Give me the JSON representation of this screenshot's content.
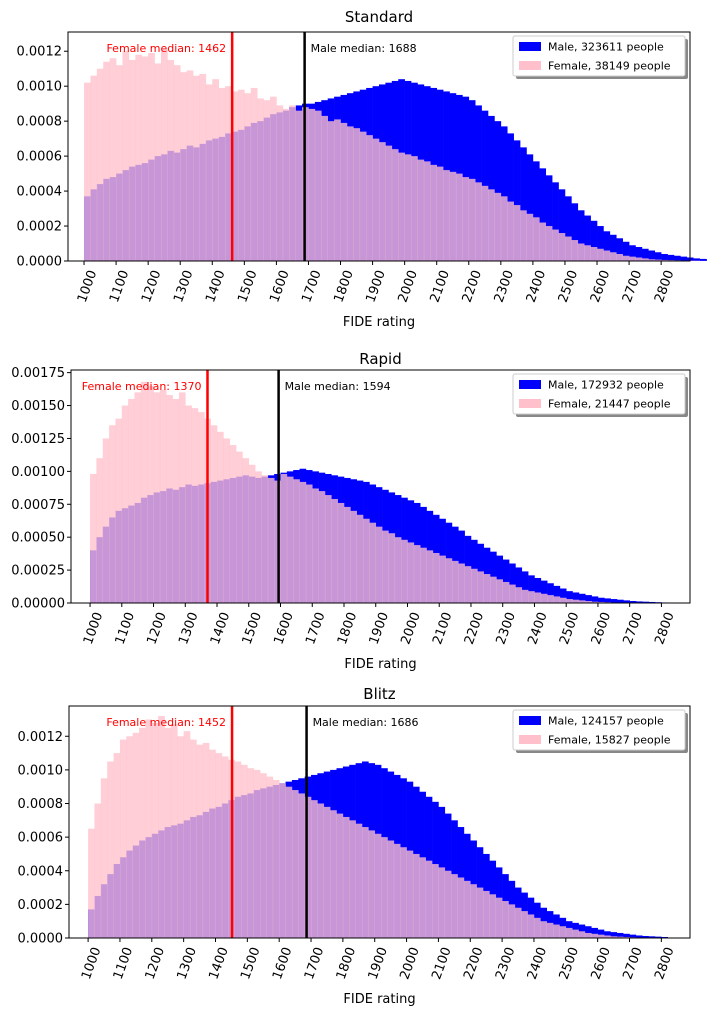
{
  "colors": {
    "male": "#0000ff",
    "female": "#ffc0cb",
    "overlap": "#c89bd6",
    "female_median": "#ff0000",
    "male_median": "#000000"
  },
  "chart_data": [
    {
      "type": "histogram",
      "title": "Standard",
      "xlabel": "FIDE rating",
      "ylabel": "",
      "xlim": [
        950,
        2890
      ],
      "ylim": [
        0,
        0.00131
      ],
      "bin_width": 20,
      "x_ticks": [
        "1000",
        "1100",
        "1200",
        "1300",
        "1400",
        "1500",
        "1600",
        "1700",
        "1800",
        "1900",
        "2000",
        "2100",
        "2200",
        "2300",
        "2400",
        "2500",
        "2600",
        "2700",
        "2800"
      ],
      "y_ticks": [
        "0.0000",
        "0.0002",
        "0.0004",
        "0.0006",
        "0.0008",
        "0.0010",
        "0.0012"
      ],
      "y_tick_values": [
        0,
        0.0002,
        0.0004,
        0.0006,
        0.0008,
        0.001,
        0.0012
      ],
      "legend_position": "top-right",
      "legend_labels": [
        "Male, 323611 people",
        "Female, 38149 people"
      ],
      "median_labels": {
        "female": "Female median: 1462",
        "male": "Male median: 1688"
      },
      "medians": {
        "female": 1462,
        "male": 1688
      },
      "series": [
        {
          "name": "Male, 323611 people",
          "x_start": 1000,
          "values": [
            0.00037,
            0.00041,
            0.00044,
            0.00047,
            0.00048,
            0.0005,
            0.00052,
            0.00054,
            0.00055,
            0.00056,
            0.00058,
            0.0006,
            0.00061,
            0.00063,
            0.00062,
            0.00064,
            0.00066,
            0.00065,
            0.00067,
            0.00069,
            0.0007,
            0.00071,
            0.00073,
            0.00074,
            0.00075,
            0.00077,
            0.00079,
            0.0008,
            0.00082,
            0.00084,
            0.00085,
            0.00086,
            0.00088,
            0.00089,
            0.0009,
            0.0009,
            0.00091,
            0.00092,
            0.00093,
            0.00094,
            0.00095,
            0.00096,
            0.00097,
            0.00098,
            0.00099,
            0.001,
            0.00101,
            0.00102,
            0.00103,
            0.00104,
            0.00103,
            0.00102,
            0.00101,
            0.001,
            0.00099,
            0.00098,
            0.00097,
            0.00096,
            0.00095,
            0.00094,
            0.00092,
            0.00089,
            0.00086,
            0.00083,
            0.0008,
            0.00077,
            0.00073,
            0.00069,
            0.00065,
            0.00061,
            0.00057,
            0.00053,
            0.00049,
            0.00045,
            0.00041,
            0.00037,
            0.00033,
            0.00029,
            0.00026,
            0.00023,
            0.0002,
            0.00017,
            0.00015,
            0.00013,
            0.00011,
            9e-05,
            8e-05,
            7e-05,
            6e-05,
            5e-05,
            4e-05,
            3.5e-05,
            3e-05,
            2.5e-05,
            2e-05,
            1.5e-05,
            1.2e-05,
            1e-05,
            8e-06,
            6e-06,
            5e-06
          ]
        },
        {
          "name": "Female, 38149 people",
          "x_start": 1000,
          "values": [
            0.00102,
            0.00106,
            0.0011,
            0.00114,
            0.00116,
            0.00112,
            0.0012,
            0.00115,
            0.00118,
            0.00117,
            0.00119,
            0.00113,
            0.00121,
            0.00115,
            0.00112,
            0.00108,
            0.00109,
            0.00106,
            0.00107,
            0.00101,
            0.00104,
            0.00099,
            0.001,
            0.00097,
            0.00098,
            0.00096,
            0.00099,
            0.00093,
            0.00092,
            0.00094,
            0.00089,
            0.00087,
            0.00089,
            0.00086,
            0.00088,
            0.00087,
            0.00086,
            0.00083,
            0.0008,
            0.00081,
            0.00079,
            0.00077,
            0.00076,
            0.00074,
            0.00072,
            0.0007,
            0.00068,
            0.00066,
            0.00064,
            0.00062,
            0.00061,
            0.0006,
            0.00058,
            0.00057,
            0.00055,
            0.00054,
            0.00052,
            0.00051,
            0.0005,
            0.00048,
            0.00047,
            0.00045,
            0.00043,
            0.00041,
            0.00039,
            0.00037,
            0.00034,
            0.00032,
            0.00029,
            0.00027,
            0.00025,
            0.00022,
            0.0002,
            0.00018,
            0.00016,
            0.00014,
            0.00012,
            0.0001,
            9e-05,
            8e-05,
            7e-05,
            6e-05,
            5e-05,
            4e-05,
            3e-05,
            2.5e-05,
            2e-05,
            1.5e-05,
            1e-05,
            8e-06,
            6e-06,
            5e-06,
            4e-06,
            3e-06,
            2e-06,
            2e-06,
            1e-06,
            1e-06,
            1e-06,
            1e-06,
            1e-06
          ]
        }
      ]
    },
    {
      "type": "histogram",
      "title": "Rapid",
      "xlabel": "FIDE rating",
      "ylabel": "",
      "xlim": [
        940,
        2890
      ],
      "ylim": [
        0,
        0.00177
      ],
      "bin_width": 20,
      "x_ticks": [
        "1000",
        "1100",
        "1200",
        "1300",
        "1400",
        "1500",
        "1600",
        "1700",
        "1800",
        "1900",
        "2000",
        "2100",
        "2200",
        "2300",
        "2400",
        "2500",
        "2600",
        "2700",
        "2800"
      ],
      "y_ticks": [
        "0.00000",
        "0.00025",
        "0.00050",
        "0.00075",
        "0.00100",
        "0.00125",
        "0.00150",
        "0.00175"
      ],
      "y_tick_values": [
        0,
        0.00025,
        0.0005,
        0.00075,
        0.001,
        0.00125,
        0.0015,
        0.00175
      ],
      "legend_position": "top-right",
      "legend_labels": [
        "Male, 172932 people",
        "Female, 21447 people"
      ],
      "median_labels": {
        "female": "Female median: 1370",
        "male": "Male median: 1594"
      },
      "medians": {
        "female": 1370,
        "male": 1594
      },
      "series": [
        {
          "name": "Male, 172932 people",
          "x_start": 1000,
          "values": [
            0.0004,
            0.0005,
            0.00058,
            0.00065,
            0.0007,
            0.00072,
            0.00074,
            0.00076,
            0.0008,
            0.00082,
            0.00084,
            0.00085,
            0.00087,
            0.00086,
            0.00088,
            0.0009,
            0.00089,
            0.0009,
            0.00091,
            0.00092,
            0.00093,
            0.00094,
            0.00095,
            0.00096,
            0.00097,
            0.00096,
            0.00095,
            0.00096,
            0.00097,
            0.00098,
            0.00099,
            0.001,
            0.00101,
            0.00102,
            0.00101,
            0.001,
            0.00099,
            0.00098,
            0.00097,
            0.00096,
            0.00095,
            0.00094,
            0.00093,
            0.00092,
            0.0009,
            0.00088,
            0.00086,
            0.00084,
            0.00082,
            0.0008,
            0.00078,
            0.00076,
            0.00073,
            0.0007,
            0.00067,
            0.00064,
            0.00061,
            0.00058,
            0.00055,
            0.00051,
            0.00048,
            0.00045,
            0.00042,
            0.00039,
            0.00036,
            0.00033,
            0.0003,
            0.00027,
            0.00024,
            0.00021,
            0.00019,
            0.00017,
            0.00015,
            0.00013,
            0.00011,
            9e-05,
            8e-05,
            7e-05,
            6e-05,
            5e-05,
            4e-05,
            3.5e-05,
            3e-05,
            2.5e-05,
            2e-05,
            1.5e-05,
            1.2e-05,
            1e-05,
            8e-06,
            6e-06,
            4e-06
          ]
        },
        {
          "name": "Female, 21447 people",
          "x_start": 1000,
          "values": [
            0.00098,
            0.0011,
            0.00125,
            0.00135,
            0.0014,
            0.0015,
            0.00155,
            0.0016,
            0.00168,
            0.00165,
            0.0016,
            0.00162,
            0.00158,
            0.00155,
            0.0016,
            0.0015,
            0.00148,
            0.00145,
            0.0014,
            0.00135,
            0.0013,
            0.00125,
            0.0012,
            0.00115,
            0.0011,
            0.00105,
            0.001,
            0.00097,
            0.00095,
            0.00093,
            0.00098,
            0.00096,
            0.00094,
            0.00092,
            0.0009,
            0.00087,
            0.00085,
            0.00082,
            0.00079,
            0.00076,
            0.00073,
            0.0007,
            0.00067,
            0.00064,
            0.00061,
            0.00058,
            0.00055,
            0.00053,
            0.0005,
            0.00048,
            0.00046,
            0.00044,
            0.00042,
            0.0004,
            0.00038,
            0.00036,
            0.00034,
            0.00032,
            0.0003,
            0.00028,
            0.00026,
            0.00024,
            0.00022,
            0.0002,
            0.00018,
            0.00016,
            0.00014,
            0.00012,
            0.0001,
            9e-05,
            8e-05,
            7e-05,
            6e-05,
            5e-05,
            4e-05,
            3e-05,
            2.5e-05,
            2e-05,
            1.5e-05,
            1e-05,
            8e-06,
            6e-06,
            4e-06,
            3e-06,
            2e-06,
            2e-06,
            1e-06,
            1e-06,
            1e-06,
            1e-06,
            1e-06
          ]
        }
      ]
    },
    {
      "type": "histogram",
      "title": "Blitz",
      "xlabel": "FIDE rating",
      "ylabel": "",
      "xlim": [
        940,
        2890
      ],
      "ylim": [
        0,
        0.00138
      ],
      "bin_width": 20,
      "x_ticks": [
        "1000",
        "1100",
        "1200",
        "1300",
        "1400",
        "1500",
        "1600",
        "1700",
        "1800",
        "1900",
        "2000",
        "2100",
        "2200",
        "2300",
        "2400",
        "2500",
        "2600",
        "2700",
        "2800"
      ],
      "y_ticks": [
        "0.0000",
        "0.0002",
        "0.0004",
        "0.0006",
        "0.0008",
        "0.0010",
        "0.0012"
      ],
      "y_tick_values": [
        0,
        0.0002,
        0.0004,
        0.0006,
        0.0008,
        0.001,
        0.0012
      ],
      "legend_position": "top-right",
      "legend_labels": [
        "Male, 124157 people",
        "Female, 15827 people"
      ],
      "median_labels": {
        "female": "Female median: 1452",
        "male": "Male median: 1686"
      },
      "medians": {
        "female": 1452,
        "male": 1686
      },
      "series": [
        {
          "name": "Male, 124157 people",
          "x_start": 1000,
          "values": [
            0.00017,
            0.00025,
            0.00032,
            0.00038,
            0.00044,
            0.00048,
            0.00052,
            0.00055,
            0.00058,
            0.0006,
            0.00062,
            0.00064,
            0.00066,
            0.00067,
            0.00068,
            0.0007,
            0.00072,
            0.00073,
            0.00075,
            0.00077,
            0.00078,
            0.0008,
            0.00082,
            0.00084,
            0.00085,
            0.00086,
            0.00088,
            0.00089,
            0.0009,
            0.00091,
            0.00092,
            0.00093,
            0.00094,
            0.00095,
            0.00096,
            0.00097,
            0.00098,
            0.00099,
            0.001,
            0.00101,
            0.00102,
            0.00103,
            0.00104,
            0.00105,
            0.00104,
            0.00103,
            0.00101,
            0.00099,
            0.00097,
            0.00095,
            0.00093,
            0.0009,
            0.00087,
            0.00084,
            0.00081,
            0.00078,
            0.00074,
            0.0007,
            0.00066,
            0.00062,
            0.00058,
            0.00054,
            0.0005,
            0.00046,
            0.00042,
            0.00038,
            0.00034,
            0.0003,
            0.00027,
            0.00024,
            0.00021,
            0.00018,
            0.00016,
            0.00014,
            0.00012,
            0.0001,
            9e-05,
            8e-05,
            7e-05,
            6e-05,
            5e-05,
            4e-05,
            3.5e-05,
            3e-05,
            2.5e-05,
            2e-05,
            1.5e-05,
            1.2e-05,
            1e-05,
            8e-06,
            6e-06
          ]
        },
        {
          "name": "Female, 15827 people",
          "x_start": 1000,
          "values": [
            0.00065,
            0.0008,
            0.00095,
            0.00105,
            0.0011,
            0.00118,
            0.0012,
            0.00122,
            0.00125,
            0.0013,
            0.00128,
            0.00132,
            0.00125,
            0.00127,
            0.0012,
            0.00123,
            0.00118,
            0.00115,
            0.00116,
            0.00112,
            0.0011,
            0.00108,
            0.00106,
            0.00105,
            0.00103,
            0.00101,
            0.001,
            0.00098,
            0.00096,
            0.00094,
            0.00092,
            0.0009,
            0.00088,
            0.00086,
            0.00084,
            0.00082,
            0.0008,
            0.00078,
            0.00076,
            0.00074,
            0.00072,
            0.0007,
            0.00068,
            0.00066,
            0.00064,
            0.00062,
            0.0006,
            0.00058,
            0.00056,
            0.00054,
            0.00052,
            0.0005,
            0.00048,
            0.00046,
            0.00044,
            0.00042,
            0.0004,
            0.00038,
            0.00036,
            0.00034,
            0.00032,
            0.0003,
            0.00028,
            0.00026,
            0.00024,
            0.00022,
            0.0002,
            0.00018,
            0.00016,
            0.00014,
            0.00012,
            0.0001,
            9e-05,
            8e-05,
            7e-05,
            6e-05,
            5e-05,
            4e-05,
            3e-05,
            2.5e-05,
            2e-05,
            1.5e-05,
            1e-05,
            8e-06,
            6e-06,
            4e-06,
            3e-06,
            2e-06,
            2e-06,
            1e-06,
            1e-06
          ]
        }
      ]
    }
  ]
}
